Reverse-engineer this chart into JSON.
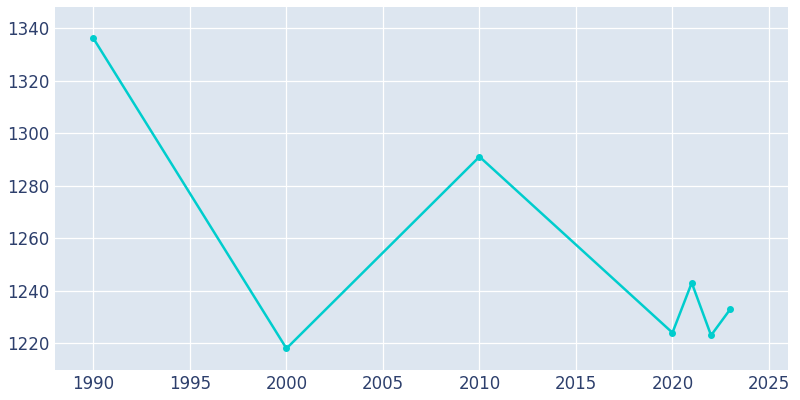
{
  "years": [
    1990,
    2000,
    2010,
    2020,
    2021,
    2022,
    2023
  ],
  "population": [
    1336,
    1218,
    1291,
    1224,
    1243,
    1223,
    1233
  ],
  "line_color": "#00CDCD",
  "ax_bg_color": "#DDE6F0",
  "fig_bg_color": "#FFFFFF",
  "grid_color": "#FFFFFF",
  "xlim": [
    1988,
    2026
  ],
  "ylim": [
    1210,
    1348
  ],
  "xticks": [
    1990,
    1995,
    2000,
    2005,
    2010,
    2015,
    2020,
    2025
  ],
  "yticks": [
    1220,
    1240,
    1260,
    1280,
    1300,
    1320,
    1340
  ],
  "linewidth": 1.8,
  "marker": "o",
  "markersize": 4,
  "tick_labelsize": 12,
  "tick_color": "#2D3F6C"
}
